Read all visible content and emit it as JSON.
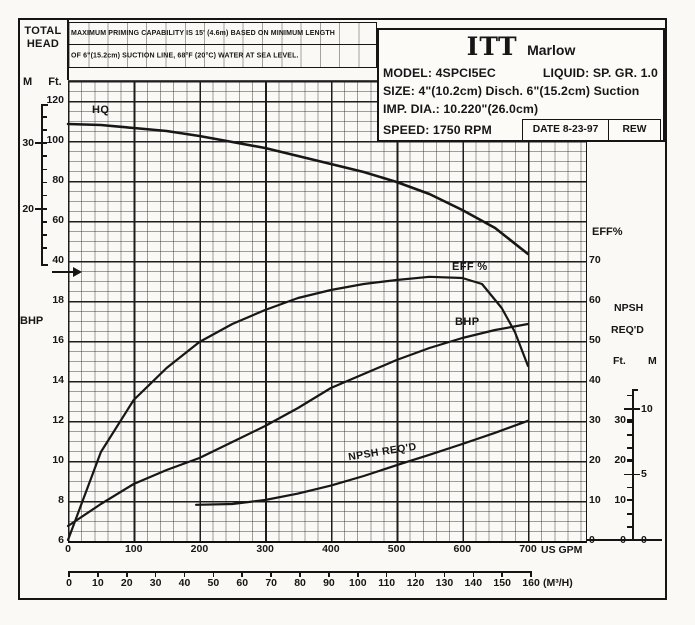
{
  "note": {
    "line1": "MAXIMUM PRIMING CAPABILITY IS 15' (4.6m) BASED ON MINIMUM LENGTH",
    "line2": "OF 6\"(15.2cm) SUCTION LINE, 68°F (20°C) WATER AT SEA LEVEL."
  },
  "title_block": {
    "brand": "ITT",
    "brand_suffix": "Marlow",
    "model": "MODEL: 4SPCI5EC",
    "liquid": "LIQUID: SP. GR. 1.0",
    "size": "SIZE: 4\"(10.2cm) Disch. 6\"(15.2cm) Suction",
    "imp_dia": "IMP. DIA.: 10.220\"(26.0cm)",
    "speed": "SPEED: 1750 RPM",
    "date": "DATE 8-23-97",
    "rev": "REW"
  },
  "left_axis": {
    "title_line1": "TOTAL",
    "title_line2": "HEAD",
    "m_unit": "M",
    "ft_unit": "Ft.",
    "ft_ticks": [
      120,
      100,
      80,
      60,
      40
    ],
    "m_ticks": [
      30,
      20
    ],
    "bhp_title": "BHP",
    "bhp_ticks": [
      18,
      16,
      14,
      12,
      10,
      8,
      6
    ]
  },
  "right_axis": {
    "eff_title": "EFF%",
    "eff_ticks": [
      70,
      60,
      50,
      40,
      30,
      20,
      10,
      0
    ],
    "npsh_title_line1": "NPSH",
    "npsh_title_line2": "REQ'D",
    "ft_unit": "Ft.",
    "m_unit": "M",
    "npsh_ft_ticks": [
      30,
      20,
      10,
      0
    ],
    "npsh_m_ticks": [
      10,
      5,
      0
    ]
  },
  "x_axis": {
    "gpm_ticks": [
      0,
      100,
      200,
      300,
      400,
      500,
      600,
      700
    ],
    "gpm_unit": "US GPM",
    "m3h_ticks": [
      0,
      10,
      20,
      30,
      40,
      50,
      60,
      70,
      80,
      90,
      100,
      110,
      120,
      130,
      140,
      150,
      160
    ],
    "m3h_unit": "(M³/H)"
  },
  "chart_data": {
    "type": "line",
    "title": "ITT Marlow model 4SPCI5EC centrifugal pump performance curve, 1750 RPM, 10.220 in (26.0 cm) impeller, SP. GR. 1.0",
    "x_unit": "US GPM",
    "x_range": [
      0,
      700
    ],
    "secondary_x_unit": "M³/H",
    "secondary_x_range": [
      0,
      160
    ],
    "head_axis_ft_range": [
      40,
      120
    ],
    "head_axis_m_ticks": [
      30,
      20
    ],
    "bhp_axis_range": [
      6,
      18
    ],
    "eff_axis_pct_range": [
      0,
      70
    ],
    "npsh_axis_ft_range": [
      0,
      30
    ],
    "npsh_axis_m_range": [
      0,
      10
    ],
    "grid": "on",
    "series": [
      {
        "name": "head-capacity",
        "label": "HQ",
        "unit": "Ft",
        "x": [
          0,
          50,
          100,
          150,
          200,
          250,
          300,
          350,
          400,
          450,
          500,
          550,
          600,
          650,
          700
        ],
        "y": [
          108,
          107.5,
          106,
          104.5,
          102,
          99,
          96,
          92,
          88,
          84,
          79,
          73,
          65,
          56,
          43
        ]
      },
      {
        "name": "efficiency",
        "label": "EFF %",
        "unit": "%",
        "x": [
          0,
          50,
          100,
          150,
          200,
          250,
          300,
          350,
          400,
          450,
          500,
          550,
          600,
          630,
          660,
          680,
          700
        ],
        "y": [
          0,
          22,
          35,
          43,
          49.5,
          54,
          57.5,
          60.5,
          62.5,
          64,
          65,
          65.8,
          65.5,
          64,
          58,
          52,
          43.5
        ]
      },
      {
        "name": "brake-horsepower",
        "label": "BHP",
        "unit": "BHP",
        "x": [
          0,
          50,
          100,
          150,
          200,
          250,
          300,
          350,
          400,
          450,
          500,
          550,
          600,
          650,
          700
        ],
        "y": [
          6.7,
          7.8,
          8.8,
          9.5,
          10.1,
          10.9,
          11.7,
          12.6,
          13.6,
          14.3,
          15.0,
          15.6,
          16.1,
          16.5,
          16.8
        ]
      },
      {
        "name": "npsh-required",
        "label": "NPSH  REQ'D",
        "unit": "Ft",
        "x": [
          195,
          250,
          300,
          350,
          400,
          450,
          500,
          550,
          600,
          650,
          700
        ],
        "y": [
          8.8,
          9,
          10,
          11.6,
          13.6,
          16,
          18.7,
          21.3,
          24,
          26.8,
          29.8
        ]
      }
    ]
  }
}
